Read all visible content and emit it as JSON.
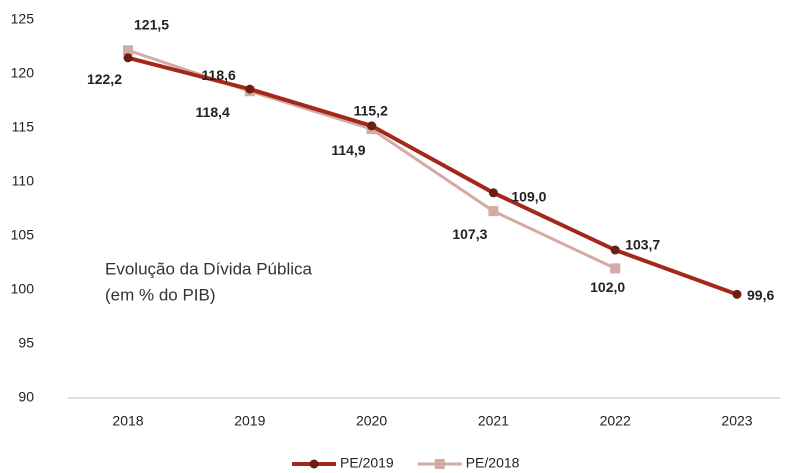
{
  "chart_data": {
    "type": "line",
    "annotation": [
      "Evolução da Dívida Pública",
      "(em % do PIB)"
    ],
    "categories": [
      "2018",
      "2019",
      "2020",
      "2021",
      "2022",
      "2023"
    ],
    "series": [
      {
        "name": "PE/2019",
        "color": "#a3281a",
        "values": [
          121.5,
          118.6,
          115.2,
          109.0,
          103.7,
          99.6
        ],
        "value_labels": [
          "121,5",
          "118,6",
          "115,2",
          "109,0",
          "103,7",
          "99,6"
        ]
      },
      {
        "name": "PE/2018",
        "color": "#d3aba3",
        "values": [
          122.2,
          118.4,
          114.9,
          107.3,
          102.0,
          null
        ],
        "value_labels": [
          "122,2",
          "118,4",
          "114,9",
          "107,3",
          "102,0",
          null
        ]
      }
    ],
    "ylim": [
      90,
      125
    ],
    "yticks": [
      90,
      95,
      100,
      105,
      110,
      115,
      120,
      125
    ],
    "grid": false
  }
}
